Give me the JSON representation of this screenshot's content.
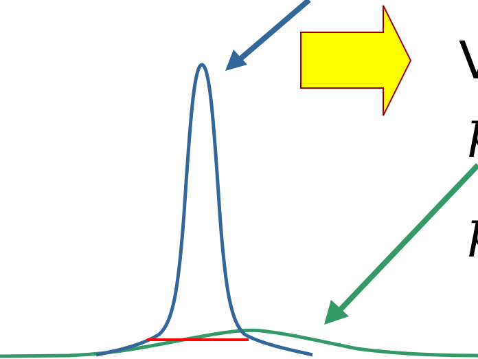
{
  "slide": {
    "heading_fragment": "V",
    "variable_1": "p",
    "variable_2": "p"
  },
  "colors": {
    "background": "#ffffff",
    "narrow_curve": "#336699",
    "wide_curve": "#339966",
    "width_marker": "#ff0000",
    "big_arrow_fill": "#ffff00",
    "big_arrow_stroke": "#990000",
    "text": "#000000"
  },
  "icons": {
    "big_arrow": "right-block-arrow-icon",
    "pointer_to_narrow_peak": "down-left-pointer-arrow-icon",
    "pointer_to_wide_curve": "down-left-pointer-arrow-icon"
  }
}
